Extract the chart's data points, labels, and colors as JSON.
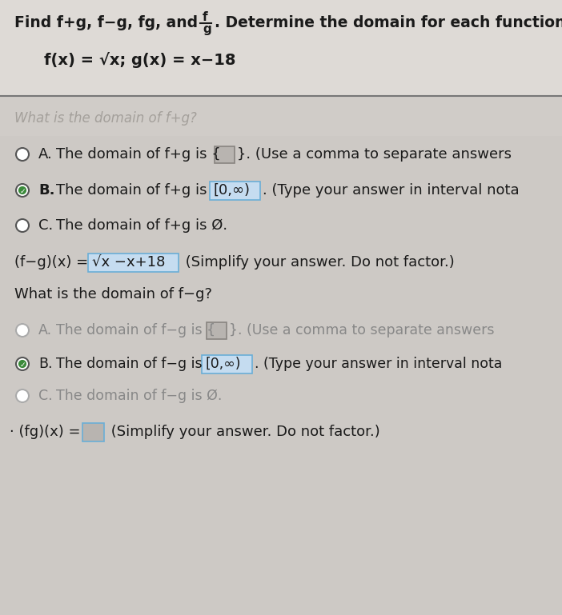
{
  "bg_color": "#cdc9c5",
  "header_bg": "#cdc9c5",
  "white_bg": "#e8e6e3",
  "title1": "Find f+g, f−g, fg, and",
  "frac_num": "f",
  "frac_den": "g",
  "title1_end": ". Determine the domain for each function.",
  "title2": "f(x) = √x; g(x) = x−18",
  "blur_label": "What is the domain of f+g?",
  "optA1_pre": "The domain of f+g is {",
  "optA1_suf": "}. (Use a comma to separate answers",
  "optB1_pre": "The domain of f+g is",
  "optB1_box": "[0,∞)",
  "optB1_suf": ". (Type your answer in interval nota",
  "optC1": "The domain of f+g is Ø.",
  "fg_eq_pre": "(f−g)(x) =",
  "fg_eq_box": "√x −x+18",
  "fg_eq_suf": " (Simplify your answer. Do not factor.)",
  "domain_q2": "What is the domain of f−g?",
  "optA2_pre": "The domain of f−g is {",
  "optA2_suf": "}. (Use a comma to separate answers",
  "optB2_pre": "The domain of f−g is",
  "optB2_box": "[0,∞)",
  "optB2_suf": ". (Type your answer in interval nota",
  "optC2": "The domain of f−g is Ø.",
  "fgprod_pre": "(fg)(x) =",
  "fgprod_suf": " (Simplify your answer. Do not factor.)",
  "box_fill_blue": "#c5dcf0",
  "box_edge_blue": "#6aaed6",
  "box_fill_gray": "#b8b4b0",
  "box_edge_gray": "#888480",
  "radio_green": "#3a8a3a",
  "radio_gray": "#aaaaaa",
  "text_dark": "#1a1a1a",
  "text_gray": "#888888",
  "text_faded": "#999590"
}
